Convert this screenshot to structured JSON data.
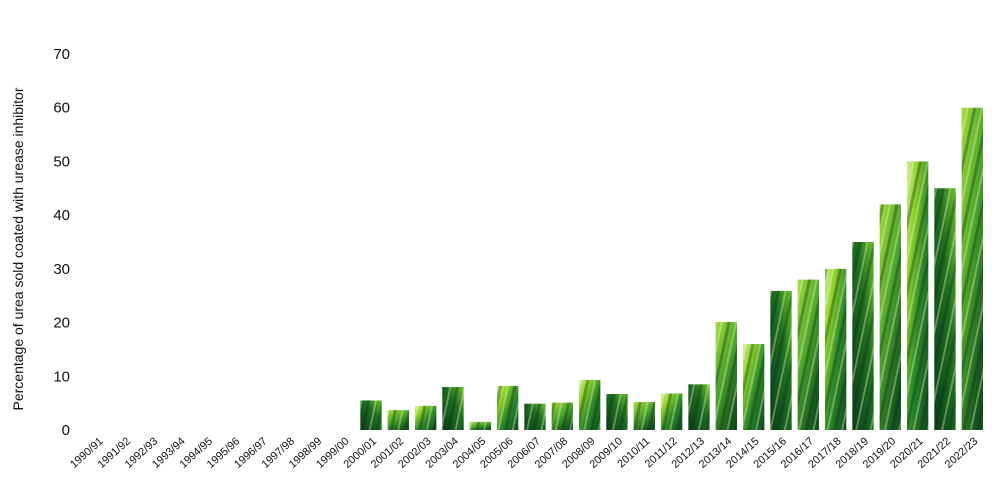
{
  "chart_data": {
    "type": "bar",
    "title": "",
    "xlabel": "",
    "ylabel": "Percentage of urea sold coated with urease inhibitor",
    "ylim": [
      0,
      70
    ],
    "y_ticks": [
      "0",
      "10",
      "20",
      "30",
      "40",
      "50",
      "60",
      "70"
    ],
    "grid": false,
    "legend": "none",
    "bar_fill_style": "green grass photo texture",
    "colors": {
      "dark_green": "#0d4a1e",
      "mid_green": "#2f8a2a",
      "light_green": "#8fd12a",
      "highlight": "#d8f0a0"
    },
    "categories": [
      "1990/91",
      "1991/92",
      "1992/93",
      "1993/94",
      "1994/95",
      "1995/96",
      "1996/97",
      "1997/98",
      "1998/99",
      "1999/00",
      "2000/01",
      "2001/02",
      "2002/03",
      "2003/04",
      "2004/05",
      "2005/06",
      "2006/07",
      "2007/08",
      "2008/09",
      "2009/10",
      "2010/11",
      "2011/12",
      "2012/13",
      "2013/14",
      "2014/15",
      "2015/16",
      "2016/17",
      "2017/18",
      "2018/19",
      "2019/20",
      "2020/21",
      "2021/22",
      "2022/23"
    ],
    "values": [
      0,
      0,
      0,
      0,
      0,
      0,
      0,
      0,
      0,
      0,
      5.5,
      3.7,
      4.5,
      8.0,
      1.5,
      8.2,
      4.9,
      5.1,
      9.3,
      6.7,
      5.2,
      6.8,
      8.5,
      20.1,
      16.0,
      25.9,
      28.0,
      30.0,
      35.0,
      42.0,
      50.0,
      45.0,
      60.0
    ]
  }
}
